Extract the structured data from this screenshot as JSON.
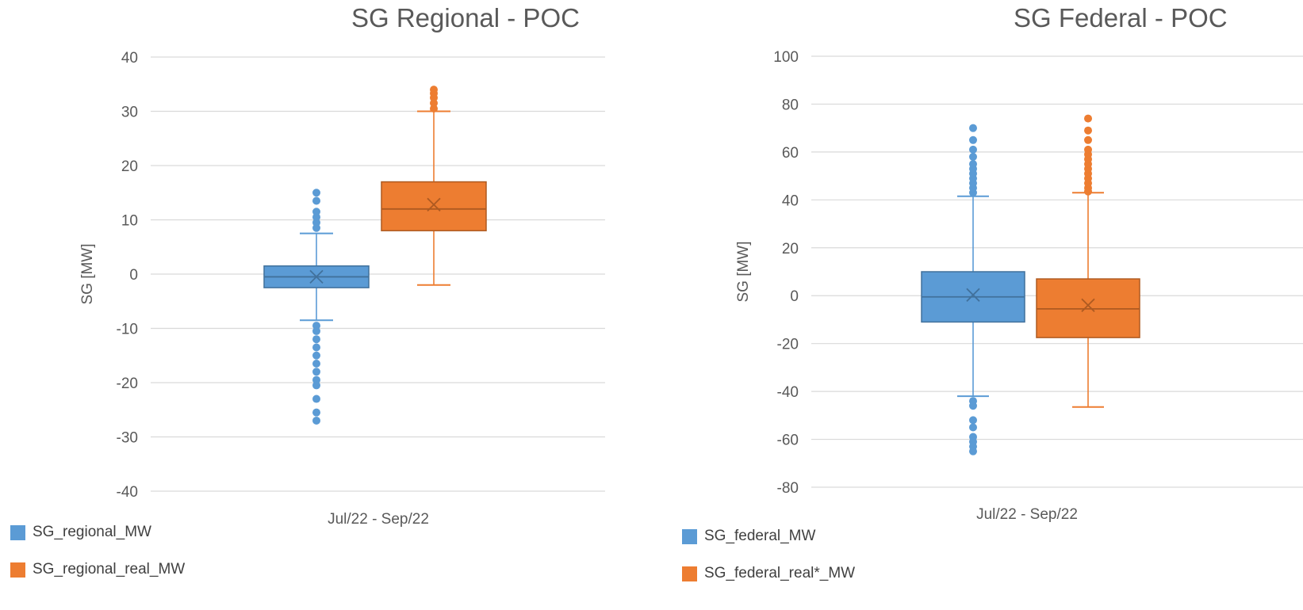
{
  "chart_data": [
    {
      "type": "box",
      "title": "SG Regional - POC",
      "xlabel": "",
      "ylabel": "SG [MW]",
      "categories": [
        "Jul/22 - Sep/22"
      ],
      "ylim": [
        -40,
        40
      ],
      "yticks": [
        40,
        30,
        20,
        10,
        0,
        -10,
        -20,
        -30,
        -40
      ],
      "grid": true,
      "legend_position": "bottom-left",
      "series": [
        {
          "name": "SG_regional_MW",
          "color": "#5B9BD5",
          "whisker_low": -8.5,
          "q1": -2.5,
          "median": -0.5,
          "q3": 1.5,
          "whisker_high": 7.5,
          "mean": -0.5,
          "outliers": [
            8.5,
            9.5,
            10.5,
            11.5,
            13.5,
            15,
            -9.5,
            -10.5,
            -12,
            -13.5,
            -15,
            -16.5,
            -18,
            -19.5,
            -20.5,
            -23,
            -25.5,
            -27
          ]
        },
        {
          "name": "SG_regional_real_MW",
          "color": "#ED7D31",
          "whisker_low": -2,
          "q1": 8,
          "median": 12,
          "q3": 17,
          "whisker_high": 30,
          "mean": 12.8,
          "outliers": [
            30.5,
            31.5,
            32.5,
            33.3,
            34
          ]
        }
      ]
    },
    {
      "type": "box",
      "title": "SG Federal - POC",
      "xlabel": "",
      "ylabel": "SG [MW]",
      "categories": [
        "Jul/22 - Sep/22"
      ],
      "ylim": [
        -80,
        100
      ],
      "yticks": [
        100,
        80,
        60,
        40,
        20,
        0,
        -20,
        -40,
        -60,
        -80
      ],
      "grid": true,
      "legend_position": "bottom-left",
      "series": [
        {
          "name": "SG_federal_MW",
          "color": "#5B9BD5",
          "whisker_low": -42,
          "q1": -11,
          "median": -0.5,
          "q3": 10,
          "whisker_high": 41.5,
          "mean": 0.3,
          "outliers": [
            43,
            45,
            47,
            49,
            51,
            53,
            55,
            58,
            61,
            65,
            70,
            -44,
            -46,
            -52,
            -55,
            -59,
            -61,
            -63,
            -65
          ]
        },
        {
          "name": "SG_federal_real*_MW",
          "color": "#ED7D31",
          "whisker_low": -46.5,
          "q1": -17.5,
          "median": -5.5,
          "q3": 7,
          "whisker_high": 43,
          "mean": -4,
          "outliers": [
            43.5,
            45,
            47,
            49,
            51,
            53,
            55,
            57,
            59,
            61,
            65,
            69,
            74
          ]
        }
      ]
    }
  ],
  "legend_left": [
    "SG_regional_MW",
    "SG_regional_real_MW"
  ],
  "legend_right": [
    "SG_federal_MW",
    "SG_federal_real*_MW"
  ],
  "colors": {
    "blue": "#5B9BD5",
    "orange": "#ED7D31",
    "grid": "#D9D9D9",
    "text": "#595959"
  }
}
